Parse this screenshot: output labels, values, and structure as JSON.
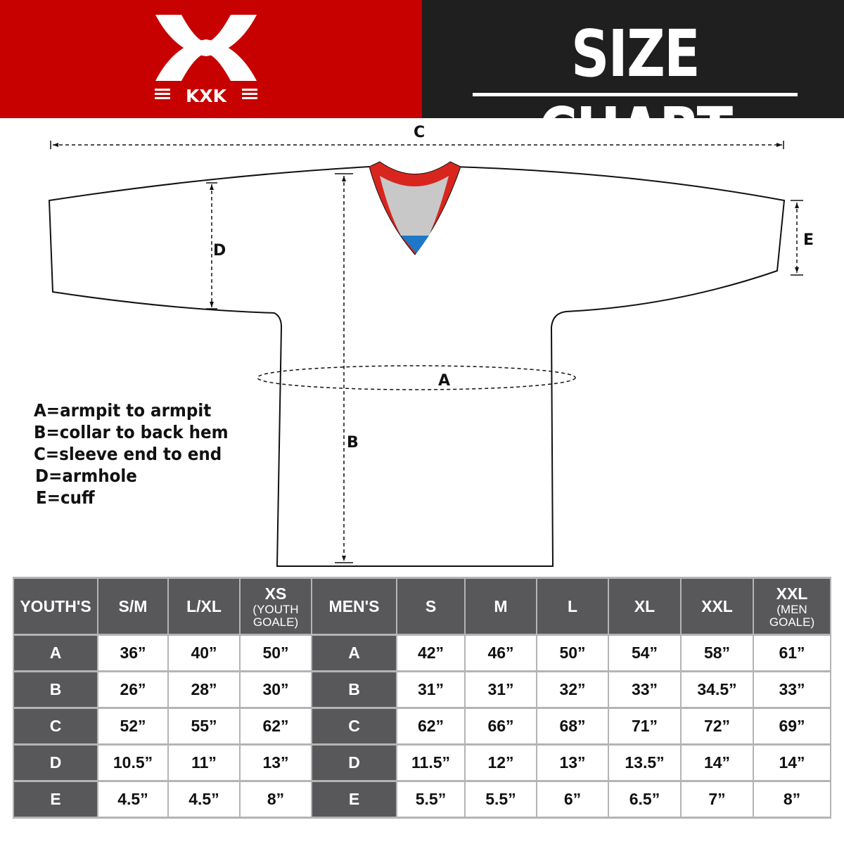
{
  "brand": {
    "logo_text": "KXK",
    "color": "#c70000"
  },
  "header": {
    "title": "SIZE CHART"
  },
  "diagram": {
    "labels": {
      "a": "A",
      "b": "B",
      "c": "C",
      "d": "D",
      "e": "E"
    }
  },
  "legend": [
    "A=armpit to armpit",
    "B=collar to back hem",
    "C=sleeve end to end",
    "D=armhole",
    "E=cuff"
  ],
  "table": {
    "youth": {
      "header": "YOUTH'S",
      "sizes": [
        {
          "main": "S/M",
          "sub": ""
        },
        {
          "main": "L/XL",
          "sub": ""
        },
        {
          "main": "XS",
          "sub": "(YOUTH GOALE)"
        }
      ]
    },
    "men": {
      "header": "MEN'S",
      "sizes": [
        {
          "main": "S",
          "sub": ""
        },
        {
          "main": "M",
          "sub": ""
        },
        {
          "main": "L",
          "sub": ""
        },
        {
          "main": "XL",
          "sub": ""
        },
        {
          "main": "XXL",
          "sub": ""
        },
        {
          "main": "XXL",
          "sub": "(MEN GOALE)"
        }
      ]
    },
    "rows": [
      {
        "key": "A",
        "youth": [
          "36”",
          "40”",
          "50”"
        ],
        "men": [
          "42”",
          "46”",
          "50”",
          "54”",
          "58”",
          "61”"
        ]
      },
      {
        "key": "B",
        "youth": [
          "26”",
          "28”",
          "30”"
        ],
        "men": [
          "31”",
          "31”",
          "32”",
          "33”",
          "34.5”",
          "33”"
        ]
      },
      {
        "key": "C",
        "youth": [
          "52”",
          "55”",
          "62”"
        ],
        "men": [
          "62”",
          "66”",
          "68”",
          "71”",
          "72”",
          "69”"
        ]
      },
      {
        "key": "D",
        "youth": [
          "10.5”",
          "11”",
          "13”"
        ],
        "men": [
          "11.5”",
          "12”",
          "13”",
          "13.5”",
          "14”",
          "14”"
        ]
      },
      {
        "key": "E",
        "youth": [
          "4.5”",
          "4.5”",
          "8”"
        ],
        "men": [
          "5.5”",
          "5.5”",
          "6”",
          "6.5”",
          "7”",
          "8”"
        ]
      }
    ]
  }
}
